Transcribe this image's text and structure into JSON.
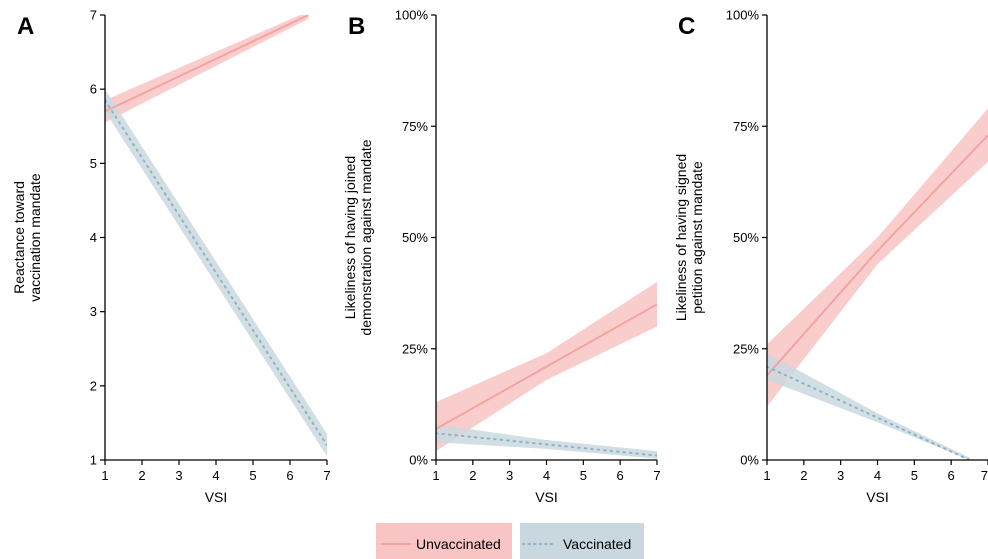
{
  "colors": {
    "unvaccinated_line": "#f4a3a3",
    "unvaccinated_band": "#f9c4c4",
    "vaccinated_line": "#8fb2c2",
    "vaccinated_band": "#c9d8df",
    "axis": "#000000"
  },
  "legend": {
    "position": "bottom",
    "items": [
      {
        "label": "Unvaccinated",
        "line_style": "solid",
        "color_key": "unvaccinated"
      },
      {
        "label": "Vaccinated",
        "line_style": "dotted",
        "color_key": "vaccinated"
      }
    ]
  },
  "chart_data": [
    {
      "panel": "A",
      "type": "line",
      "xlabel": "VSI",
      "ylabel": [
        "Reactance toward",
        "vaccination mandate"
      ],
      "xlim": [
        1,
        7
      ],
      "ylim": [
        1,
        7
      ],
      "xticks": [
        "1",
        "2",
        "3",
        "4",
        "5",
        "6",
        "7"
      ],
      "yticks": [
        {
          "value": 1,
          "label": "1"
        },
        {
          "value": 2,
          "label": "2"
        },
        {
          "value": 3,
          "label": "3"
        },
        {
          "value": 4,
          "label": "4"
        },
        {
          "value": 5,
          "label": "5"
        },
        {
          "value": 6,
          "label": "6"
        },
        {
          "value": 7,
          "label": "7"
        }
      ],
      "grid": false,
      "series": [
        {
          "name": "Unvaccinated",
          "x": [
            1,
            6.5
          ],
          "y": [
            5.7,
            7.0
          ],
          "lower": [
            5.55,
            6.95
          ],
          "upper": [
            5.85,
            7.05
          ]
        },
        {
          "name": "Vaccinated",
          "x": [
            1,
            7
          ],
          "y": [
            5.85,
            1.2
          ],
          "lower": [
            5.7,
            1.05
          ],
          "upper": [
            6.0,
            1.35
          ]
        }
      ]
    },
    {
      "panel": "B",
      "type": "line",
      "xlabel": "VSI",
      "ylabel": [
        "Likeliness of having joined",
        "demonstration against mandate"
      ],
      "xlim": [
        1,
        7
      ],
      "ylim": [
        0,
        100
      ],
      "xticks": [
        "1",
        "2",
        "3",
        "4",
        "5",
        "6",
        "7"
      ],
      "yticks": [
        {
          "value": 0,
          "label": "0%"
        },
        {
          "value": 25,
          "label": "25%"
        },
        {
          "value": 50,
          "label": "50%"
        },
        {
          "value": 75,
          "label": "75%"
        },
        {
          "value": 100,
          "label": "100%"
        }
      ],
      "grid": false,
      "series": [
        {
          "name": "Unvaccinated",
          "x": [
            1,
            4,
            7
          ],
          "y": [
            7,
            21,
            35
          ],
          "lower": [
            2,
            18,
            30
          ],
          "upper": [
            13,
            24,
            40
          ]
        },
        {
          "name": "Vaccinated",
          "x": [
            1,
            4,
            7
          ],
          "y": [
            6,
            3.5,
            1
          ],
          "lower": [
            4,
            2.5,
            0.3
          ],
          "upper": [
            8,
            4.5,
            2
          ]
        }
      ]
    },
    {
      "panel": "C",
      "type": "line",
      "xlabel": "VSI",
      "ylabel": [
        "Likeliness of having signed",
        "petition against mandate"
      ],
      "xlim": [
        1,
        7
      ],
      "ylim": [
        0,
        100
      ],
      "xticks": [
        "1",
        "2",
        "3",
        "4",
        "5",
        "6",
        "7"
      ],
      "yticks": [
        {
          "value": 0,
          "label": "0%"
        },
        {
          "value": 25,
          "label": "25%"
        },
        {
          "value": 50,
          "label": "50%"
        },
        {
          "value": 75,
          "label": "75%"
        },
        {
          "value": 100,
          "label": "100%"
        }
      ],
      "grid": false,
      "series": [
        {
          "name": "Unvaccinated",
          "x": [
            1,
            4,
            7
          ],
          "y": [
            19,
            47,
            73
          ],
          "lower": [
            12,
            44,
            67
          ],
          "upper": [
            26,
            50,
            79
          ]
        },
        {
          "name": "Vaccinated",
          "x": [
            1,
            4,
            6.5
          ],
          "y": [
            21,
            9.5,
            0
          ],
          "lower": [
            18,
            8.5,
            0
          ],
          "upper": [
            24,
            10.5,
            0.5
          ]
        }
      ]
    }
  ]
}
